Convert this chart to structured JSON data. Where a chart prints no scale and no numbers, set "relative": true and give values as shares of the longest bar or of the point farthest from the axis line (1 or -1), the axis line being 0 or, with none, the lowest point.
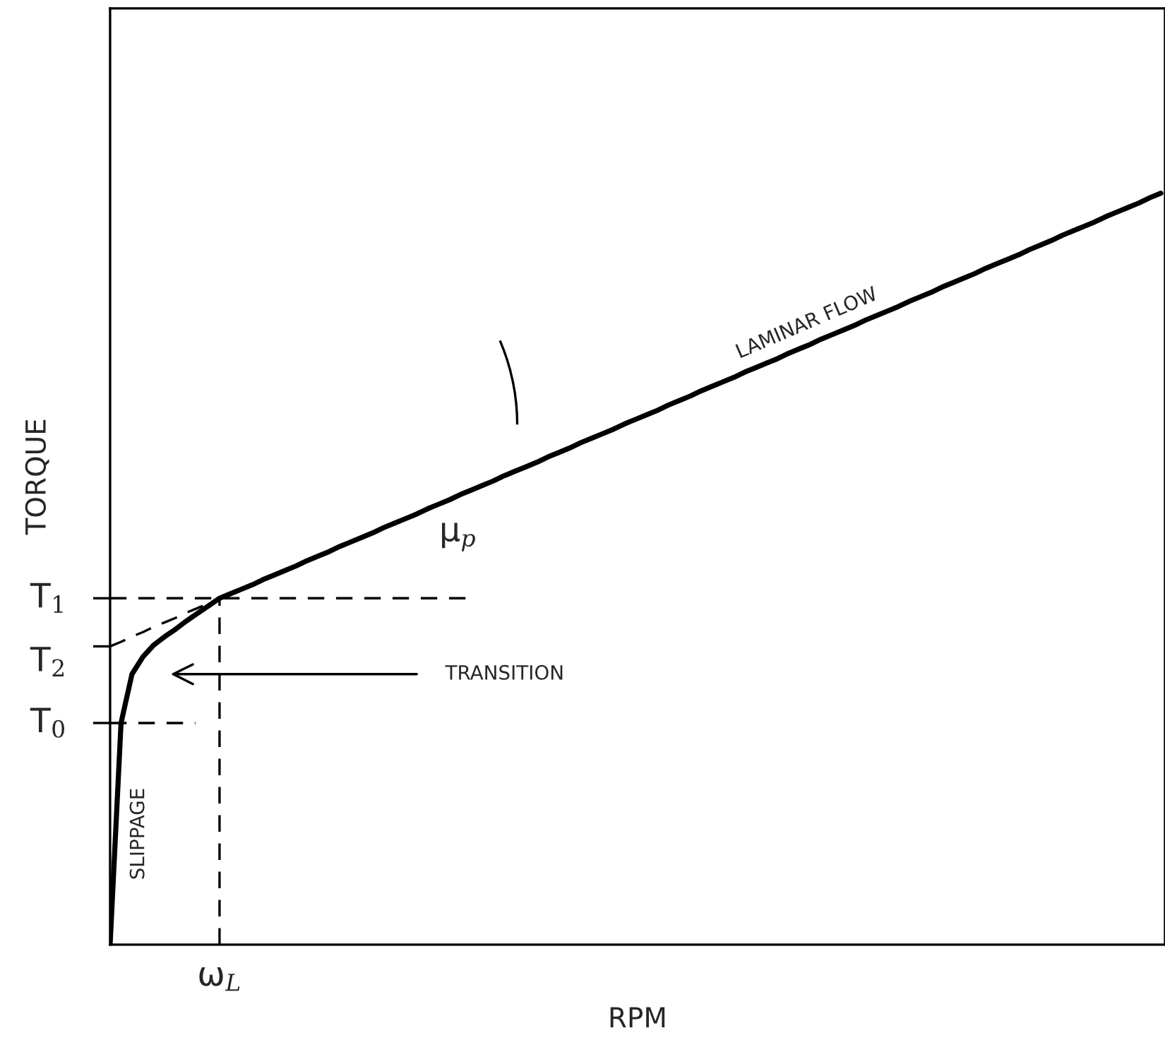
{
  "chart_data": {
    "type": "line",
    "relative": true,
    "xlabel": "RPM",
    "ylabel": "TORQUE",
    "grid": false,
    "marker": "none",
    "line_style": "solid",
    "categories": [
      null,
      null,
      null,
      null,
      null,
      null,
      null,
      null,
      null,
      null,
      null,
      null,
      null,
      null,
      null,
      null,
      null,
      null,
      null,
      null,
      null,
      null,
      null,
      null,
      null,
      null,
      null,
      null,
      null,
      null,
      null,
      null,
      null,
      null,
      null,
      null,
      null,
      null,
      null,
      null,
      null,
      null,
      null,
      null,
      null,
      null,
      null,
      null,
      null,
      null,
      null,
      null,
      null,
      null,
      null,
      null,
      null,
      null,
      null,
      null,
      null,
      null,
      null,
      null,
      null,
      null,
      null,
      null,
      null,
      null,
      null,
      null,
      null,
      null,
      null,
      null,
      null,
      null,
      null,
      null,
      null,
      null,
      null,
      null,
      null,
      null,
      null,
      null,
      null,
      null,
      null,
      null,
      null,
      null,
      null,
      null,
      null
    ],
    "series": [
      {
        "color": "#000000",
        "values": [
          0,
          0.295,
          0.36,
          0.383,
          0.399,
          0.41,
          0.42,
          0.431,
          0.441,
          0.451,
          0.461,
          0.467,
          0.473,
          0.479,
          0.486,
          0.492,
          0.498,
          0.504,
          0.511,
          0.517,
          0.523,
          0.53,
          0.536,
          0.542,
          0.548,
          0.555,
          0.561,
          0.567,
          0.573,
          0.58,
          0.586,
          0.592,
          0.599,
          0.605,
          0.611,
          0.617,
          0.624,
          0.63,
          0.636,
          0.642,
          0.649,
          0.655,
          0.661,
          0.668,
          0.674,
          0.68,
          0.686,
          0.693,
          0.699,
          0.705,
          0.711,
          0.718,
          0.724,
          0.73,
          0.737,
          0.743,
          0.749,
          0.755,
          0.762,
          0.768,
          0.774,
          0.78,
          0.787,
          0.793,
          0.799,
          0.806,
          0.812,
          0.818,
          0.824,
          0.831,
          0.837,
          0.843,
          0.849,
          0.856,
          0.862,
          0.868,
          0.875,
          0.881,
          0.887,
          0.893,
          0.9,
          0.906,
          0.912,
          0.918,
          0.925,
          0.931,
          0.937,
          0.944,
          0.95,
          0.956,
          0.962,
          0.969,
          0.975,
          0.981,
          0.987,
          0.994,
          1.0
        ]
      },
      {
        "name": "T$_{2}$",
        "color": "#000000",
        "line_style": "dashed",
        "values": [
          0.397,
          0.403,
          0.41,
          0.416,
          0.423,
          0.429,
          0.435,
          0.442,
          0.448,
          0.454,
          0.461,
          null,
          null,
          null,
          null,
          null,
          null,
          null,
          null,
          null,
          null,
          null,
          null,
          null,
          null,
          null,
          null,
          null,
          null,
          null,
          null,
          null,
          null,
          null,
          null,
          null,
          null,
          null,
          null,
          null,
          null,
          null,
          null,
          null,
          null,
          null,
          null,
          null,
          null,
          null,
          null,
          null,
          null,
          null,
          null,
          null,
          null,
          null,
          null,
          null,
          null,
          null,
          null,
          null,
          null,
          null,
          null,
          null,
          null,
          null,
          null,
          null,
          null,
          null,
          null,
          null,
          null,
          null,
          null,
          null,
          null,
          null,
          null,
          null,
          null,
          null,
          null,
          null,
          null,
          null,
          null,
          null,
          null,
          null,
          null,
          null,
          null
        ]
      }
    ],
    "ref_lines": [
      {
        "axis": "y",
        "value": 0.461,
        "label": "T$_{1}$",
        "color": "#000000",
        "line_style": "dashed"
      },
      {
        "axis": "y",
        "value": 0.295,
        "label": "T$_{0}$",
        "color": "#000000",
        "line_style": "dashed"
      }
    ],
    "annotations": [
      "μ$_{p}$",
      "TRANSITION",
      "LAMINAR FLOW",
      "SLIPPAGE",
      "ω$_{L}$"
    ]
  }
}
